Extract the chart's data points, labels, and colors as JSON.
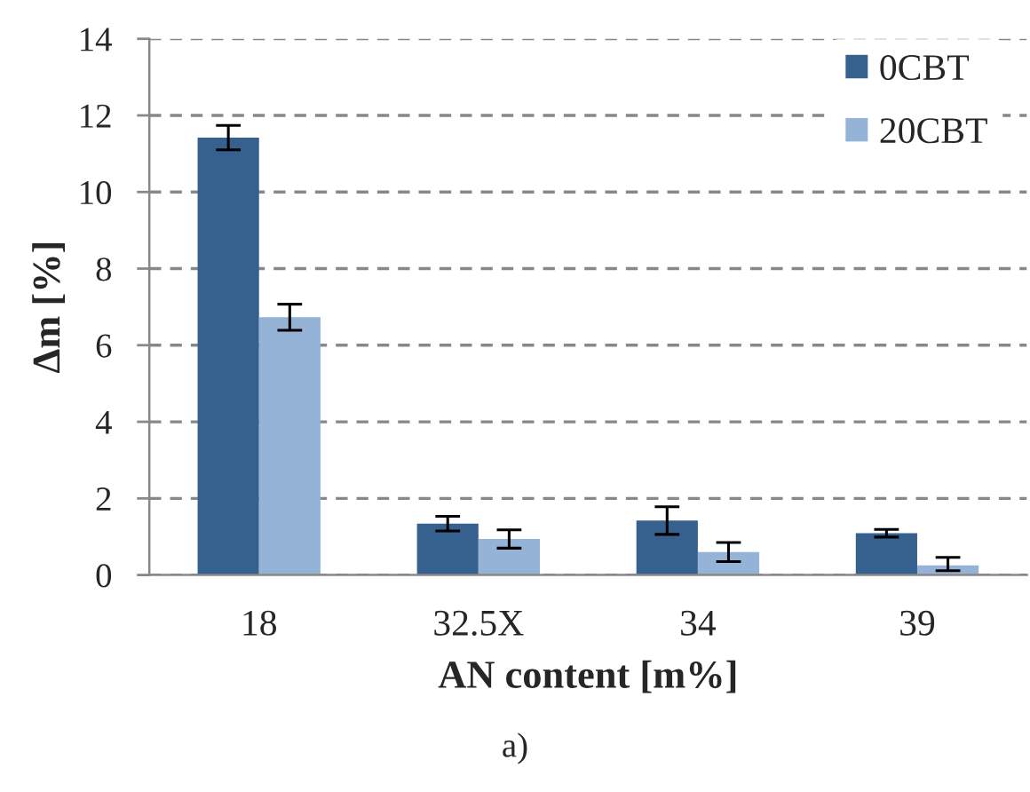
{
  "chart_data": {
    "type": "bar",
    "xlabel": "AN content [m%]",
    "ylabel": "Δm [%]",
    "categories": [
      "18",
      "32.5X",
      "34",
      "39"
    ],
    "series": [
      {
        "name": "0CBT",
        "color": "#36618f",
        "values": [
          11.42,
          1.34,
          1.42,
          1.09
        ],
        "errors": [
          0.32,
          0.19,
          0.36,
          0.1
        ]
      },
      {
        "name": "20CBT",
        "color": "#95b3d7",
        "values": [
          6.73,
          0.94,
          0.6,
          0.25
        ],
        "errors": [
          0.34,
          0.24,
          0.25,
          [
            0.11,
            0.46
          ]
        ]
      }
    ],
    "ylim": [
      0,
      14
    ],
    "yticks": [
      0,
      2,
      4,
      6,
      8,
      10,
      12,
      14
    ],
    "grid": "y",
    "legend": "top right",
    "annotations": [
      "a)"
    ]
  }
}
